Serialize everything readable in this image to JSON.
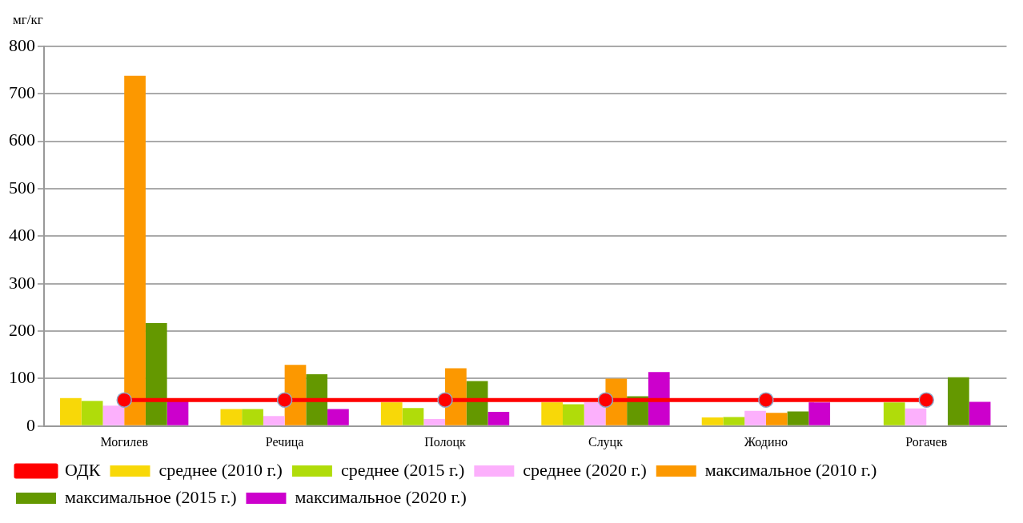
{
  "chart_data": {
    "type": "bar",
    "ylabel": "мг/кг",
    "categories": [
      "Могилев",
      "Речица",
      "Полоцк",
      "Слуцк",
      "Жодино",
      "Рогачев"
    ],
    "series": [
      {
        "name": "среднее (2010 г.)",
        "color": "#f8d808",
        "values": [
          59,
          36,
          50,
          50,
          18,
          null
        ]
      },
      {
        "name": "среднее (2015 г.)",
        "color": "#b0dc0a",
        "values": [
          53,
          36,
          38,
          46,
          19,
          50
        ]
      },
      {
        "name": "среднее (2020 г.)",
        "color": "#fcb0fc",
        "values": [
          43,
          21,
          15,
          50,
          32,
          37
        ]
      },
      {
        "name": "максимальное (2010 г.)",
        "color": "#fc9800",
        "values": [
          738,
          129,
          122,
          100,
          28,
          null
        ]
      },
      {
        "name": "максимальное (2015 г.)",
        "color": "#649800",
        "values": [
          217,
          109,
          95,
          63,
          31,
          103
        ]
      },
      {
        "name": "максимальное (2020 г.)",
        "color": "#cc00cc",
        "values": [
          55,
          36,
          30,
          114,
          50,
          51
        ]
      },
      {
        "name": "ОДК",
        "type": "line",
        "color": "#ff0000",
        "marker": "circle",
        "values": [
          55,
          55,
          55,
          55,
          55,
          55
        ]
      }
    ],
    "ylim": [
      0,
      800
    ],
    "yticks": [
      0,
      100,
      200,
      300,
      400,
      500,
      600,
      700,
      800
    ],
    "grid": "y",
    "legend": "bottom"
  }
}
